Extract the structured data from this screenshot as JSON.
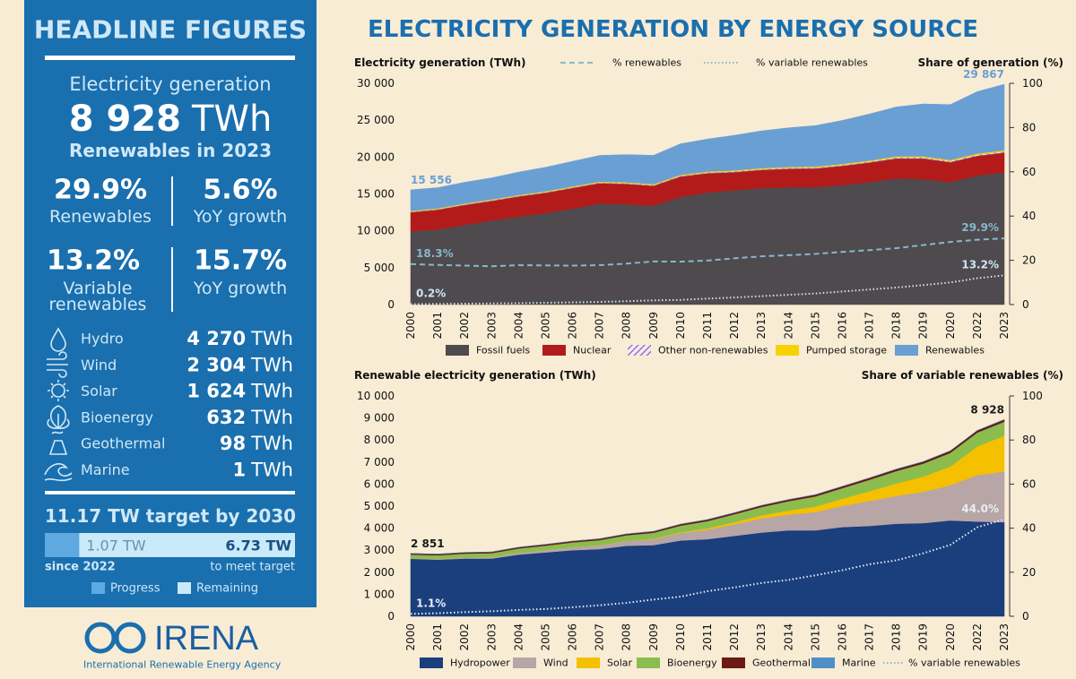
{
  "page_title": "ELECTRICITY GENERATION BY ENERGY SOURCE",
  "panel": {
    "title": "HEADLINE FIGURES",
    "generation_label": "Electricity generation",
    "generation_value": "8 928",
    "generation_unit": "TWh",
    "generation_note": "Renewables in 2023",
    "stats": [
      {
        "value": "29.9%",
        "label": "Renewables"
      },
      {
        "value": "5.6%",
        "label": "YoY growth"
      },
      {
        "value": "13.2%",
        "label": "Variable renewables"
      },
      {
        "value": "15.7%",
        "label": "YoY growth"
      }
    ],
    "sources": [
      {
        "name": "Hydro",
        "value": "4 270",
        "unit": "TWh"
      },
      {
        "name": "Wind",
        "value": "2 304",
        "unit": "TWh"
      },
      {
        "name": "Solar",
        "value": "1 624",
        "unit": "TWh"
      },
      {
        "name": "Bioenergy",
        "value": "632",
        "unit": "TWh"
      },
      {
        "name": "Geothermal",
        "value": "98",
        "unit": "TWh"
      },
      {
        "name": "Marine",
        "value": "1",
        "unit": "TWh"
      }
    ],
    "target": {
      "title": "11.17 TW target by 2030",
      "progress": {
        "value": 1.07,
        "label": "1.07 TW"
      },
      "remaining": {
        "value": 6.73,
        "label": "6.73 TW"
      },
      "start": "since 2022",
      "end": "to meet target",
      "legend": [
        "Progress",
        "Remaining"
      ]
    }
  },
  "logo": {
    "name": "IRENA",
    "full_name": "International Renewable Energy Agency"
  },
  "chart_data": [
    {
      "type": "area",
      "stacked": true,
      "y_label": "Electricity generation (TWh)",
      "y2_label": "Share of generation (%)",
      "line_legend": "top",
      "annotation_color": "#6a9fd4",
      "categories": [
        "2000",
        "2001",
        "2002",
        "2003",
        "2004",
        "2005",
        "2006",
        "2007",
        "2008",
        "2009",
        "2010",
        "2011",
        "2012",
        "2013",
        "2014",
        "2015",
        "2016",
        "2017",
        "2018",
        "2019",
        "2020",
        "2022",
        "2023"
      ],
      "ylim": [
        0,
        30000
      ],
      "yticks": [
        0,
        {
          "value": 5000,
          "label": "5 000"
        },
        {
          "value": 10000,
          "label": "10 000"
        },
        {
          "value": 15000,
          "label": "15 000"
        },
        {
          "value": 20000,
          "label": "20 000"
        },
        {
          "value": 25000,
          "label": "25 000"
        },
        {
          "value": 30000,
          "label": "30 000"
        }
      ],
      "y2lim": [
        0,
        100
      ],
      "y2ticks": [
        0,
        20,
        40,
        60,
        80,
        100
      ],
      "series": [
        {
          "name": "Fossil fuels",
          "color": "#4f4a4e",
          "values": [
            9910,
            10200,
            10800,
            11400,
            11900,
            12400,
            13000,
            13700,
            13600,
            13400,
            14600,
            15200,
            15500,
            15800,
            15900,
            15900,
            16200,
            16600,
            17100,
            17000,
            16600,
            17500,
            17900
          ]
        },
        {
          "name": "Nuclear",
          "color": "#b31b1b",
          "values": [
            2600,
            2650,
            2700,
            2650,
            2750,
            2750,
            2800,
            2750,
            2750,
            2700,
            2750,
            2600,
            2450,
            2450,
            2500,
            2550,
            2600,
            2650,
            2700,
            2800,
            2700,
            2650,
            2700
          ]
        },
        {
          "name": "Other non-renewables",
          "color": "#9b77b5",
          "pattern": "hatch",
          "values": [
            95,
            100,
            100,
            105,
            105,
            110,
            110,
            110,
            115,
            115,
            120,
            120,
            125,
            125,
            130,
            130,
            135,
            140,
            145,
            150,
            155,
            165,
            170
          ]
        },
        {
          "name": "Pumped storage",
          "color": "#f6d300",
          "values": [
            100,
            100,
            105,
            105,
            110,
            110,
            115,
            115,
            120,
            120,
            125,
            125,
            130,
            130,
            135,
            135,
            140,
            145,
            150,
            155,
            160,
            165,
            169
          ]
        },
        {
          "name": "Renewables",
          "color": "#6a9fd4",
          "values": [
            2851,
            2800,
            2880,
            2920,
            3100,
            3250,
            3400,
            3550,
            3750,
            3900,
            4200,
            4400,
            4750,
            5050,
            5300,
            5550,
            5900,
            6300,
            6700,
            7100,
            7500,
            8400,
            8928
          ]
        },
        {
          "name": "% renewables",
          "color": "#86b9cc",
          "axis": "y2",
          "style": "dashed",
          "values": [
            18.3,
            17.9,
            17.6,
            17.3,
            17.8,
            17.7,
            17.6,
            17.8,
            18.5,
            19.5,
            19.4,
            19.9,
            20.9,
            21.8,
            22.3,
            22.9,
            23.8,
            24.6,
            25.5,
            26.9,
            28.3,
            29.3,
            29.9
          ],
          "value_labels": [
            "18.3%",
            null,
            null,
            null,
            null,
            null,
            null,
            null,
            null,
            null,
            null,
            null,
            null,
            null,
            null,
            null,
            null,
            null,
            null,
            null,
            null,
            null,
            "29.9%"
          ]
        },
        {
          "name": "% variable renewables",
          "color": "#cfe6f4",
          "axis": "y2",
          "style": "dotted",
          "values": [
            0.2,
            0.3,
            0.4,
            0.5,
            0.6,
            0.8,
            1.0,
            1.2,
            1.5,
            1.9,
            2.1,
            2.7,
            3.2,
            3.8,
            4.4,
            5.0,
            5.9,
            6.8,
            7.7,
            8.8,
            10.0,
            11.9,
            13.2
          ],
          "value_labels": [
            "0.2%",
            null,
            null,
            null,
            null,
            null,
            null,
            null,
            null,
            null,
            null,
            null,
            null,
            null,
            null,
            null,
            null,
            null,
            null,
            null,
            null,
            null,
            "13.2%"
          ]
        }
      ],
      "annotations": [
        {
          "x": "2000",
          "value": 15556,
          "label": "15 556"
        },
        {
          "x": "2023",
          "value": 29867,
          "label": "29 867"
        }
      ]
    },
    {
      "type": "area",
      "stacked": true,
      "y_label": "Renewable electricity generation (TWh)",
      "y2_label": "Share of variable renewables (%)",
      "line_legend": "bottom",
      "annotation_color": "#1a1a1a",
      "categories": [
        "2000",
        "2001",
        "2002",
        "2003",
        "2004",
        "2005",
        "2006",
        "2007",
        "2008",
        "2009",
        "2010",
        "2011",
        "2012",
        "2013",
        "2014",
        "2015",
        "2016",
        "2017",
        "2018",
        "2019",
        "2020",
        "2022",
        "2023"
      ],
      "ylim": [
        0,
        10000
      ],
      "yticks": [
        0,
        {
          "value": 1000,
          "label": "1 000"
        },
        {
          "value": 2000,
          "label": "2 000"
        },
        {
          "value": 3000,
          "label": "3 000"
        },
        {
          "value": 4000,
          "label": "4 000"
        },
        {
          "value": 5000,
          "label": "5 000"
        },
        {
          "value": 6000,
          "label": "6 000"
        },
        {
          "value": 7000,
          "label": "7 000"
        },
        {
          "value": 8000,
          "label": "8 000"
        },
        {
          "value": 9000,
          "label": "9 000"
        },
        {
          "value": 10000,
          "label": "10 000"
        }
      ],
      "y2lim": [
        0,
        100
      ],
      "y2ticks": [
        0,
        20,
        40,
        60,
        80,
        100
      ],
      "series": [
        {
          "name": "Hydropower",
          "color": "#1b3e7c",
          "values": [
            2610,
            2570,
            2620,
            2620,
            2800,
            2900,
            3000,
            3050,
            3200,
            3230,
            3440,
            3500,
            3650,
            3800,
            3900,
            3900,
            4050,
            4100,
            4200,
            4230,
            4350,
            4300,
            4270
          ]
        },
        {
          "name": "Wind",
          "color": "#b8a5a6",
          "values": [
            31,
            38,
            52,
            63,
            85,
            104,
            133,
            170,
            220,
            276,
            342,
            437,
            522,
            640,
            712,
            830,
            957,
            1134,
            1262,
            1420,
            1596,
            2107,
            2304
          ]
        },
        {
          "name": "Solar",
          "color": "#f5c000",
          "values": [
            1,
            2,
            2,
            3,
            3,
            4,
            6,
            8,
            12,
            20,
            32,
            64,
            100,
            140,
            190,
            250,
            330,
            440,
            570,
            690,
            850,
            1300,
            1624
          ]
        },
        {
          "name": "Bioenergy",
          "color": "#8bbd4e",
          "values": [
            156,
            160,
            170,
            180,
            190,
            200,
            215,
            230,
            245,
            265,
            300,
            320,
            360,
            380,
            420,
            460,
            480,
            520,
            560,
            590,
            620,
            630,
            632
          ]
        },
        {
          "name": "Geothermal",
          "color": "#6b1a14",
          "values": [
            52,
            53,
            54,
            55,
            57,
            58,
            59,
            61,
            62,
            64,
            68,
            69,
            70,
            72,
            75,
            80,
            82,
            85,
            88,
            91,
            94,
            97,
            98
          ]
        },
        {
          "name": "Marine",
          "color": "#4f8fc6",
          "values": [
            1,
            1,
            1,
            1,
            1,
            1,
            1,
            1,
            1,
            1,
            1,
            1,
            1,
            1,
            1,
            1,
            1,
            1,
            1,
            1,
            1,
            1,
            1
          ]
        },
        {
          "name": "% variable renewables",
          "color": "#e6eef7",
          "axis": "y2",
          "style": "dotted",
          "values": [
            1.1,
            1.4,
            1.9,
            2.3,
            2.9,
            3.3,
            4.1,
            5.0,
            6.1,
            7.6,
            8.9,
            11.4,
            13.1,
            15.1,
            16.5,
            18.6,
            20.9,
            23.6,
            25.4,
            28.6,
            32.4,
            40.4,
            44.0
          ],
          "value_labels": [
            "1.1%",
            null,
            null,
            null,
            null,
            null,
            null,
            null,
            null,
            null,
            null,
            null,
            null,
            null,
            null,
            null,
            null,
            null,
            null,
            null,
            null,
            null,
            "44.0%"
          ]
        }
      ],
      "annotations": [
        {
          "x": "2000",
          "value": 2851,
          "label": "2 851"
        },
        {
          "x": "2023",
          "value": 8928,
          "label": "8 928"
        }
      ]
    }
  ]
}
